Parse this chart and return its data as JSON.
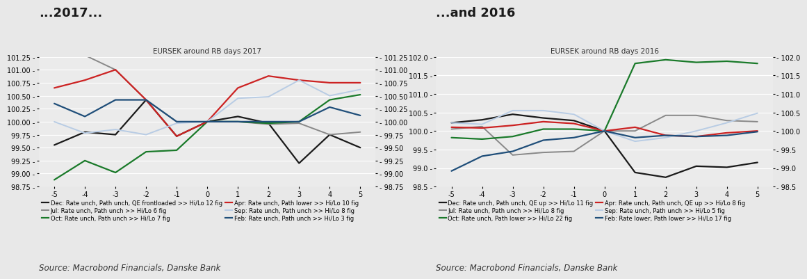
{
  "chart1": {
    "title": "EURSEK around RB days 2017",
    "panel_title": "...2017...",
    "x": [
      -5,
      -4,
      -3,
      -2,
      -1,
      0,
      1,
      2,
      3,
      4,
      5
    ],
    "ylim": [
      98.75,
      101.25
    ],
    "yticks": [
      98.75,
      99.0,
      99.25,
      99.5,
      99.75,
      100.0,
      100.25,
      100.5,
      100.75,
      101.0,
      101.25
    ],
    "ytick_labels_left": [
      "98.75 -",
      "99.00 -",
      "99.25 -",
      "99.50 -",
      "99.75 -",
      "100.00 -",
      "100.25 -",
      "100.50 -",
      "100.75 -",
      "101.00 -",
      "101.25 -"
    ],
    "ytick_labels_right": [
      "- 98.75",
      "- 99.00",
      "- 99.25",
      "- 99.50",
      "- 99.75",
      "- 100.00",
      "- 100.25",
      "- 100.50",
      "- 100.75",
      "- 101.00",
      "- 101.25"
    ],
    "series": [
      {
        "label": "Dec: Rate unch, Path unch, QE frontloaded >> Hi/Lo 12 fig",
        "color": "#1a1a1a",
        "lw": 1.6,
        "data": [
          99.55,
          99.8,
          99.75,
          100.42,
          99.72,
          100.0,
          100.1,
          99.97,
          99.2,
          99.75,
          99.5
        ]
      },
      {
        "label": "Jul: Rate unch, Path unch >> Hi/Lo 6 fig",
        "color": "#888888",
        "lw": 1.4,
        "data": [
          101.35,
          101.28,
          101.0,
          100.42,
          100.0,
          100.0,
          100.0,
          99.95,
          99.97,
          99.75,
          99.8
        ]
      },
      {
        "label": "Oct: Rate unch, Path unch >> Hi/Lo 7 fig",
        "color": "#1a7a2a",
        "lw": 1.6,
        "data": [
          98.88,
          99.25,
          99.02,
          99.42,
          99.45,
          100.0,
          100.0,
          99.97,
          100.0,
          100.42,
          100.52
        ]
      },
      {
        "label": "Apr: Rate unch, Path lower >> Hi/Lo 10 fig",
        "color": "#cc2222",
        "lw": 1.6,
        "data": [
          100.65,
          100.8,
          101.0,
          100.42,
          99.72,
          100.0,
          100.65,
          100.88,
          100.8,
          100.75,
          100.75
        ]
      },
      {
        "label": "Sep: Rate unch, Path unch >> Hi/Lo 8 fig",
        "color": "#b8cce4",
        "lw": 1.4,
        "data": [
          100.0,
          99.78,
          99.85,
          99.75,
          99.97,
          100.0,
          100.45,
          100.48,
          100.8,
          100.5,
          100.62
        ]
      },
      {
        "label": "Feb: Rate unch, Path unch >> Hi/Lo 3 fig",
        "color": "#1f4e79",
        "lw": 1.6,
        "data": [
          100.35,
          100.1,
          100.42,
          100.42,
          100.0,
          100.0,
          100.0,
          100.0,
          100.0,
          100.28,
          100.12
        ]
      }
    ],
    "source": "Source: Macrobond Financials, Danske Bank"
  },
  "chart2": {
    "title": "EURSEK around RB days 2016",
    "panel_title": "...and 2016",
    "x": [
      -5,
      -4,
      -3,
      -2,
      -1,
      0,
      1,
      2,
      3,
      4,
      5
    ],
    "ylim": [
      98.5,
      102.0
    ],
    "yticks": [
      98.5,
      99.0,
      99.5,
      100.0,
      100.5,
      101.0,
      101.5,
      102.0
    ],
    "ytick_labels_left": [
      "98.5 -",
      "99.0 -",
      "99.5 -",
      "100.0 -",
      "100.5 -",
      "101.0 -",
      "101.5 -",
      "102.0 -"
    ],
    "ytick_labels_right": [
      "- 98.5",
      "- 99.0",
      "- 99.5",
      "- 100.0",
      "- 100.5",
      "- 101.0",
      "- 101.5",
      "- 102.0"
    ],
    "series": [
      {
        "label": "Dec: Rate unch, Path unch, QE up >> Hi/Lo 11 fig",
        "color": "#1a1a1a",
        "lw": 1.6,
        "data": [
          100.22,
          100.3,
          100.45,
          100.35,
          100.28,
          100.0,
          98.88,
          98.75,
          99.05,
          99.02,
          99.15
        ]
      },
      {
        "label": "Jul: Rate unch, Path unch >> Hi/Lo 8 fig",
        "color": "#888888",
        "lw": 1.4,
        "data": [
          100.05,
          100.12,
          99.35,
          99.42,
          99.45,
          100.0,
          100.0,
          100.42,
          100.42,
          100.28,
          100.25
        ]
      },
      {
        "label": "Oct: Rate unch, Path lower >> Hi/Lo 22 fig",
        "color": "#1a7a2a",
        "lw": 1.6,
        "data": [
          99.82,
          99.78,
          99.85,
          100.05,
          100.05,
          100.0,
          101.82,
          101.92,
          101.85,
          101.88,
          101.82
        ]
      },
      {
        "label": "Apr: Rate unch, Path unch, QE up >> Hi/Lo 8 fig",
        "color": "#cc2222",
        "lw": 1.6,
        "data": [
          100.1,
          100.08,
          100.15,
          100.25,
          100.2,
          100.0,
          100.1,
          99.88,
          99.85,
          99.95,
          100.0
        ]
      },
      {
        "label": "Sep: Rate unch, Path unch >> Hi/Lo 5 fig",
        "color": "#b8cce4",
        "lw": 1.4,
        "data": [
          100.22,
          100.18,
          100.55,
          100.55,
          100.45,
          100.0,
          99.72,
          99.82,
          100.0,
          100.22,
          100.48
        ]
      },
      {
        "label": "Feb: Rate lower, Path lower >> Hi/Lo 17 fig",
        "color": "#1f4e79",
        "lw": 1.6,
        "data": [
          98.92,
          99.32,
          99.45,
          99.75,
          99.82,
          100.0,
          99.82,
          99.88,
          99.85,
          99.88,
          99.98
        ]
      }
    ],
    "source": "Source: Macrobond Financials, Danske Bank"
  },
  "bg_color": "#e8e8e8",
  "plot_bg": "#ebebeb",
  "grid_color": "#ffffff",
  "title_fontsize": 7.5,
  "panel_title_fontsize": 13,
  "legend_fontsize": 6.0,
  "source_fontsize": 8.5,
  "tick_fontsize": 7
}
